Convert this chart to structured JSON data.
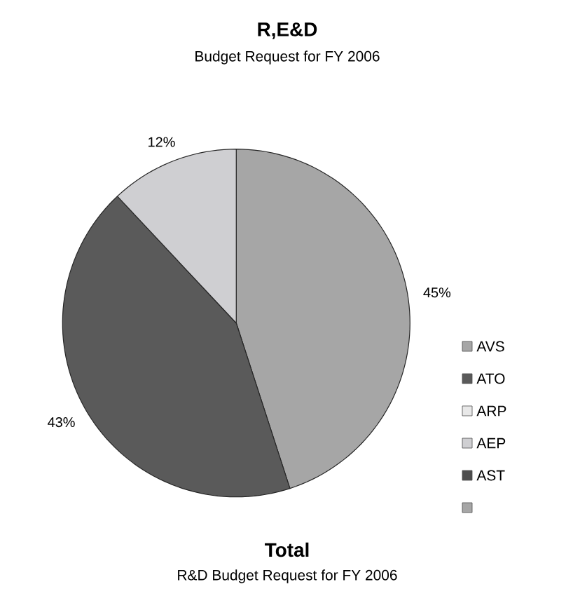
{
  "chart_data": {
    "type": "pie",
    "title": "R,E&D",
    "subtitle": "Budget Request for FY 2006",
    "categories": [
      "AVS",
      "ATO",
      "ARP",
      "AEP",
      "AST",
      null
    ],
    "values": [
      45,
      43,
      0,
      12,
      0,
      0
    ],
    "value_labels": [
      "45%",
      "43%",
      null,
      "12%",
      null,
      null
    ],
    "colors": [
      "#a6a6a6",
      "#5a5a5a",
      "#e8e8e8",
      "#cfcfd2",
      "#4d4d4d",
      "#a6a6a6"
    ],
    "legend": "right",
    "annotations": [
      "Total",
      "R&D Budget Request for FY 2006"
    ]
  }
}
